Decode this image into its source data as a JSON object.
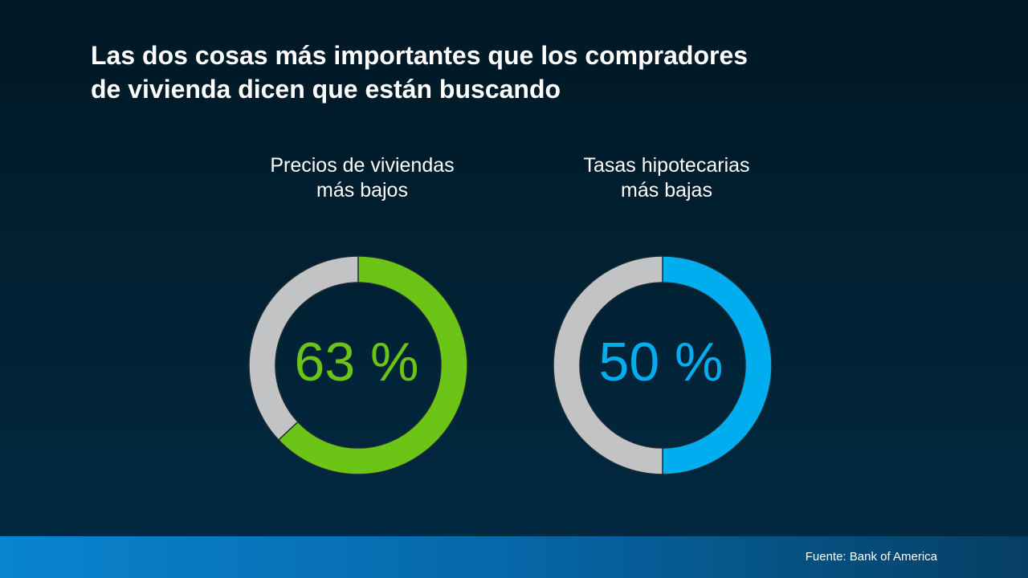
{
  "title": "Las dos cosas más importantes que los compradores\nde vivienda dicen que están buscando",
  "source": "Fuente: Bank of America",
  "chart_data": [
    {
      "type": "donut",
      "title": "Precios de viviendas\nmás bajos",
      "values": [
        63
      ],
      "value_labels": [
        "63 %"
      ],
      "color": "#6cc417"
    },
    {
      "type": "donut",
      "title": "Tasas hipotecarias\nmás bajas",
      "values": [
        50
      ],
      "value_labels": [
        "50 %"
      ],
      "color": "#00aeef"
    }
  ]
}
